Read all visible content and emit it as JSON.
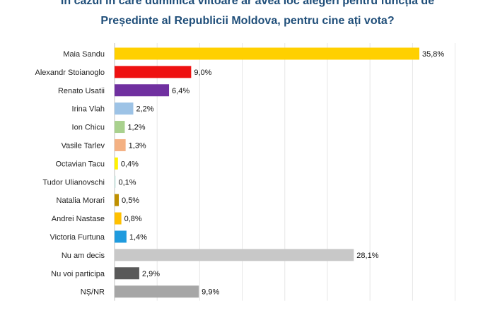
{
  "chart_data": {
    "type": "bar",
    "orientation": "horizontal",
    "title": "În cazul în care duminica viitoare ar avea loc alegeri pentru funcția de Președinte al Republicii Moldova, pentru cine ați vota?",
    "title_lines": [
      "În cazul în care duminica viitoare ar avea loc alegeri pentru funcția de",
      "Președinte al Republicii Moldova, pentru cine ați vota?"
    ],
    "xlim": [
      0,
      40
    ],
    "grid": true,
    "legend": "none",
    "bars": [
      {
        "category": "Maia Sandu",
        "value": 35.8,
        "label": "35,8%",
        "color": "#FFD000"
      },
      {
        "category": "Alexandr Stoianoglo",
        "value": 9.0,
        "label": "9,0%",
        "color": "#EE1111"
      },
      {
        "category": "Renato Usatii",
        "value": 6.4,
        "label": "6,4%",
        "color": "#7030A0"
      },
      {
        "category": "Irina Vlah",
        "value": 2.2,
        "label": "2,2%",
        "color": "#9DC3E6"
      },
      {
        "category": "Ion Chicu",
        "value": 1.2,
        "label": "1,2%",
        "color": "#A9D18E"
      },
      {
        "category": "Vasile Tarlev",
        "value": 1.3,
        "label": "1,3%",
        "color": "#F4B183"
      },
      {
        "category": "Octavian Tacu",
        "value": 0.4,
        "label": "0,4%",
        "color": "#FFF200"
      },
      {
        "category": "Tudor Ulianovschi",
        "value": 0.1,
        "label": "0,1%",
        "color": "#C9E8E3"
      },
      {
        "category": "Natalia Morari",
        "value": 0.5,
        "label": "0,5%",
        "color": "#BF9000"
      },
      {
        "category": "Andrei Nastase",
        "value": 0.8,
        "label": "0,8%",
        "color": "#FFC000"
      },
      {
        "category": "Victoria Furtuna",
        "value": 1.4,
        "label": "1,4%",
        "color": "#1F9BDE"
      },
      {
        "category": "Nu am decis",
        "value": 28.1,
        "label": "28,1%",
        "color": "#C8C8C8"
      },
      {
        "category": "Nu voi participa",
        "value": 2.9,
        "label": "2,9%",
        "color": "#595959"
      },
      {
        "category": "NȘ/NR",
        "value": 9.9,
        "label": "9,9%",
        "color": "#A6A6A6"
      }
    ]
  }
}
